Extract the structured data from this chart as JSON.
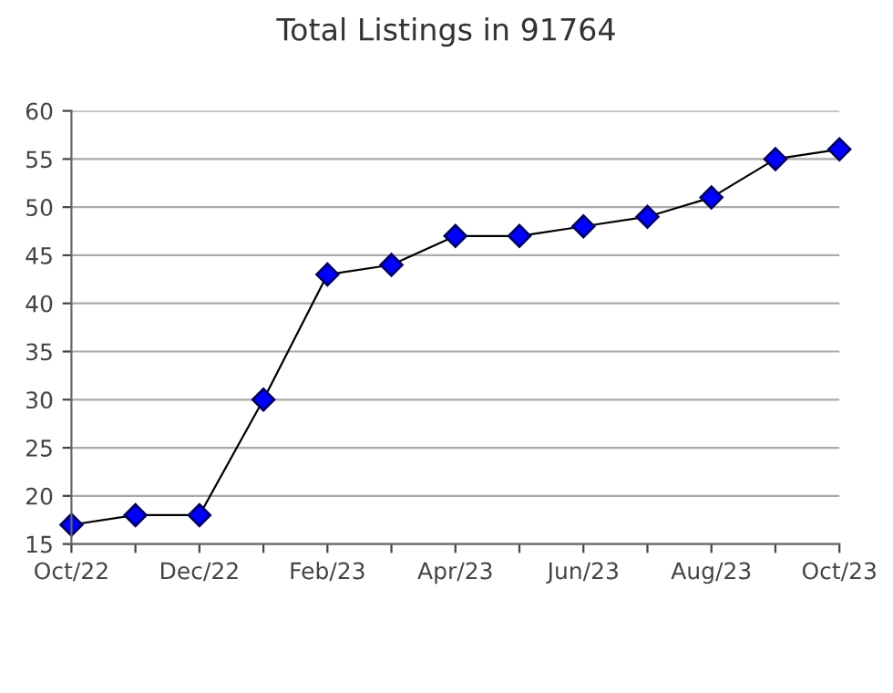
{
  "chart_data": {
    "type": "line",
    "title": "Total Listings in 91764",
    "categories": [
      "Oct/22",
      null,
      "Dec/22",
      null,
      "Feb/23",
      null,
      "Apr/23",
      null,
      "Jun/23",
      null,
      "Aug/23",
      null,
      "Oct/23"
    ],
    "series": [
      {
        "color": "#0000ff",
        "values": [
          17,
          18,
          18,
          30,
          43,
          44,
          47,
          47,
          48,
          49,
          51,
          55,
          56
        ]
      }
    ],
    "ylim": [
      15,
      60
    ],
    "yticks": [
      15,
      20,
      25,
      30,
      35,
      40,
      45,
      50,
      55,
      60
    ],
    "grid": "y",
    "marker": "diamond",
    "line_style": "solid",
    "legend": false
  }
}
